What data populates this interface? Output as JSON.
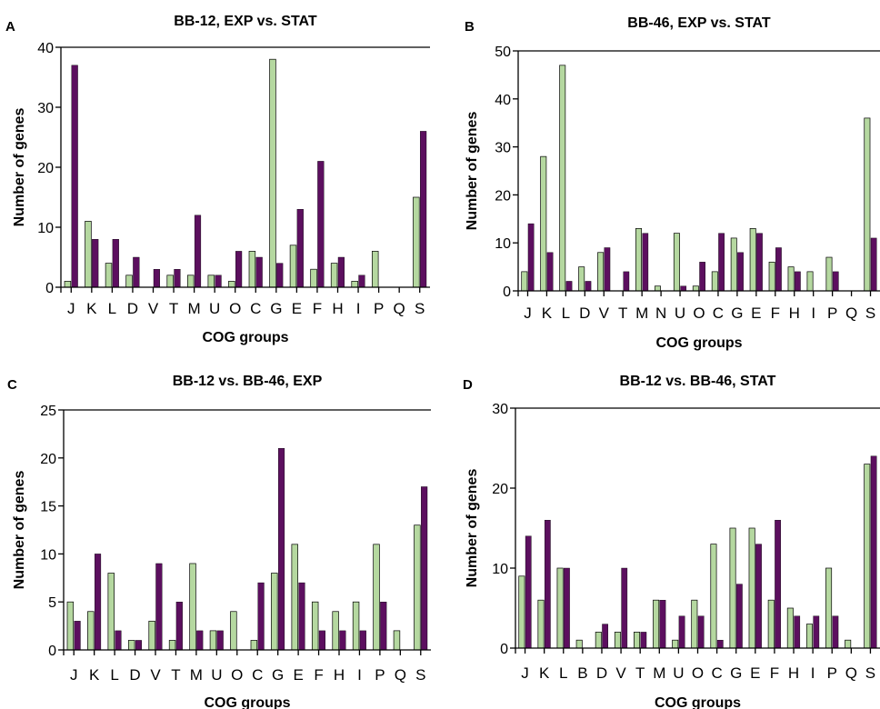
{
  "chart_data": [
    {
      "panel": "A",
      "type": "bar",
      "title": "BB-12, EXP vs. STAT",
      "xlabel": "COG groups",
      "ylabel": "Number of genes",
      "ylim": [
        0,
        40
      ],
      "yticks": [
        0,
        10,
        20,
        30,
        40
      ],
      "colors": [
        "#b5d8a0",
        "#5c0f5f"
      ],
      "categories": [
        "J",
        "K",
        "L",
        "D",
        "V",
        "T",
        "M",
        "U",
        "O",
        "C",
        "G",
        "E",
        "F",
        "H",
        "I",
        "P",
        "Q",
        "S"
      ],
      "series": [
        {
          "values": [
            1,
            11,
            4,
            2,
            0,
            2,
            2,
            2,
            1,
            6,
            38,
            7,
            3,
            4,
            1,
            6,
            0,
            15
          ]
        },
        {
          "values": [
            37,
            8,
            8,
            5,
            3,
            3,
            12,
            2,
            6,
            5,
            4,
            13,
            21,
            5,
            2,
            0,
            0,
            26
          ]
        }
      ]
    },
    {
      "panel": "B",
      "type": "bar",
      "title": "BB-46, EXP vs. STAT",
      "xlabel": "COG groups",
      "ylabel": "Number of genes",
      "ylim": [
        0,
        50
      ],
      "yticks": [
        0,
        10,
        20,
        30,
        40,
        50
      ],
      "colors": [
        "#b5d8a0",
        "#5c0f5f"
      ],
      "categories": [
        "J",
        "K",
        "L",
        "D",
        "V",
        "T",
        "M",
        "N",
        "U",
        "O",
        "C",
        "G",
        "E",
        "F",
        "H",
        "I",
        "P",
        "Q",
        "S"
      ],
      "series": [
        {
          "values": [
            4,
            28,
            47,
            5,
            8,
            0,
            13,
            1,
            12,
            1,
            4,
            11,
            13,
            6,
            5,
            4,
            7,
            0,
            36
          ]
        },
        {
          "values": [
            14,
            8,
            2,
            2,
            9,
            4,
            12,
            0,
            1,
            6,
            12,
            8,
            12,
            9,
            4,
            0,
            4,
            0,
            11
          ]
        }
      ]
    },
    {
      "panel": "C",
      "type": "bar",
      "title": "BB-12 vs.  BB-46,  EXP",
      "xlabel": "COG groups",
      "ylabel": "Number of genes",
      "ylim": [
        0,
        25
      ],
      "yticks": [
        0,
        5,
        10,
        15,
        20,
        25
      ],
      "colors": [
        "#b5d8a0",
        "#5c0f5f"
      ],
      "categories": [
        "J",
        "K",
        "L",
        "D",
        "V",
        "T",
        "M",
        "U",
        "O",
        "C",
        "G",
        "E",
        "F",
        "H",
        "I",
        "P",
        "Q",
        "S"
      ],
      "series": [
        {
          "values": [
            5,
            4,
            8,
            1,
            3,
            1,
            9,
            2,
            4,
            1,
            8,
            11,
            5,
            4,
            5,
            11,
            2,
            13
          ]
        },
        {
          "values": [
            3,
            10,
            2,
            1,
            9,
            5,
            2,
            2,
            0,
            7,
            21,
            7,
            2,
            2,
            2,
            5,
            0,
            17
          ]
        }
      ]
    },
    {
      "panel": "D",
      "type": "bar",
      "title": "BB-12 vs.  BB-46,  STAT",
      "xlabel": "COG groups",
      "ylabel": "Number of genes",
      "ylim": [
        0,
        30
      ],
      "yticks": [
        0,
        10,
        20,
        30
      ],
      "colors": [
        "#b5d8a0",
        "#5c0f5f"
      ],
      "categories": [
        "J",
        "K",
        "L",
        "B",
        "D",
        "V",
        "T",
        "M",
        "U",
        "O",
        "C",
        "G",
        "E",
        "F",
        "H",
        "I",
        "P",
        "Q",
        "S"
      ],
      "series": [
        {
          "values": [
            9,
            6,
            10,
            1,
            2,
            2,
            2,
            6,
            1,
            6,
            13,
            15,
            15,
            6,
            5,
            3,
            10,
            1,
            23
          ]
        },
        {
          "values": [
            14,
            16,
            10,
            0,
            3,
            10,
            2,
            6,
            4,
            4,
            1,
            8,
            13,
            16,
            4,
            4,
            4,
            0,
            24
          ]
        }
      ]
    }
  ]
}
